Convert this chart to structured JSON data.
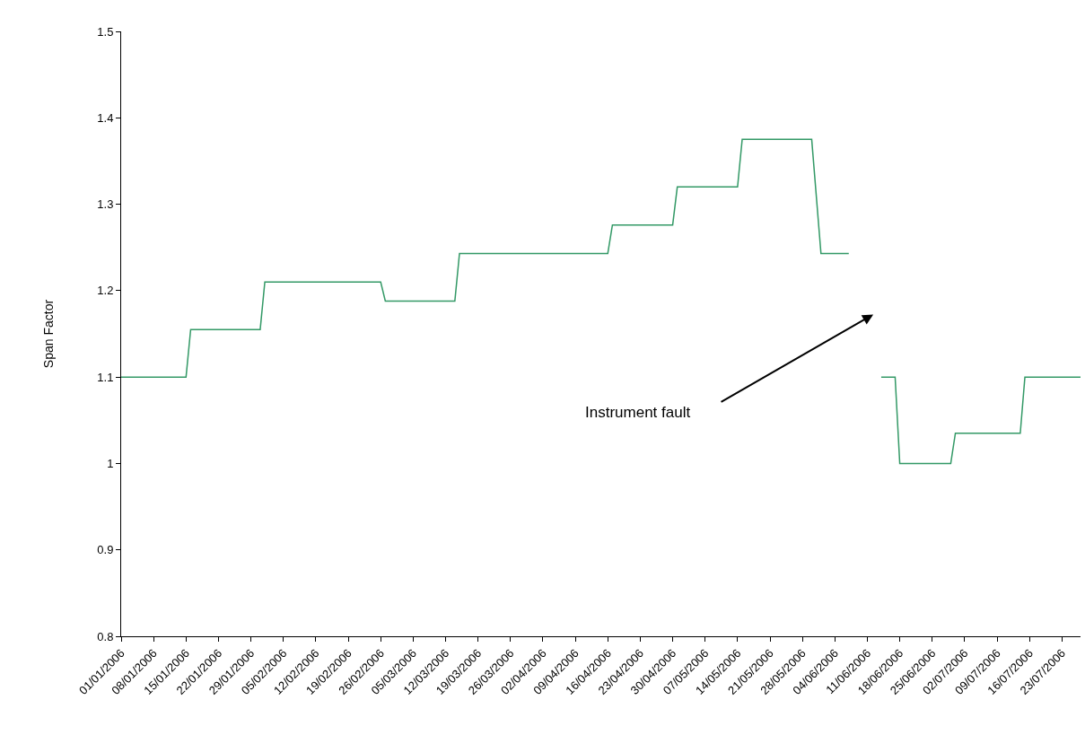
{
  "chart_data": {
    "type": "line",
    "ylabel": "Span Factor",
    "x": [
      "2006-01-01",
      "2006-01-15",
      "2006-01-16",
      "2006-01-31",
      "2006-02-01",
      "2006-02-26",
      "2006-02-27",
      "2006-03-14",
      "2006-03-15",
      "2006-04-16",
      "2006-04-17",
      "2006-04-30",
      "2006-05-01",
      "2006-05-14",
      "2006-05-15",
      "2006-05-30",
      "2006-06-01",
      "2006-06-07",
      "2006-06-10",
      "2006-06-14",
      "2006-06-17",
      "2006-06-18",
      "2006-06-29",
      "2006-06-30",
      "2006-07-14",
      "2006-07-15",
      "2006-07-27"
    ],
    "series": [
      {
        "color": "#339966",
        "values": [
          1.1,
          1.1,
          1.155,
          1.155,
          1.21,
          1.21,
          1.188,
          1.188,
          1.243,
          1.243,
          1.276,
          1.276,
          1.32,
          1.32,
          1.375,
          1.375,
          1.243,
          1.243,
          null,
          1.1,
          1.1,
          1.0,
          1.0,
          1.035,
          1.035,
          1.1,
          1.1
        ]
      }
    ],
    "ylim": [
      0.8,
      1.5
    ],
    "yticks": [
      0.8,
      0.9,
      1,
      1.1,
      1.2,
      1.3,
      1.4,
      1.5
    ],
    "xlim": [
      "2006-01-01",
      "2006-07-27"
    ],
    "xticks": [
      {
        "value": "2006-01-01",
        "label": "01/01/2006"
      },
      {
        "value": "2006-01-08",
        "label": "08/01/2006"
      },
      {
        "value": "2006-01-15",
        "label": "15/01/2006"
      },
      {
        "value": "2006-01-22",
        "label": "22/01/2006"
      },
      {
        "value": "2006-01-29",
        "label": "29/01/2006"
      },
      {
        "value": "2006-02-05",
        "label": "05/02/2006"
      },
      {
        "value": "2006-02-12",
        "label": "12/02/2006"
      },
      {
        "value": "2006-02-19",
        "label": "19/02/2006"
      },
      {
        "value": "2006-02-26",
        "label": "26/02/2006"
      },
      {
        "value": "2006-03-05",
        "label": "05/03/2006"
      },
      {
        "value": "2006-03-12",
        "label": "12/03/2006"
      },
      {
        "value": "2006-03-19",
        "label": "19/03/2006"
      },
      {
        "value": "2006-03-26",
        "label": "26/03/2006"
      },
      {
        "value": "2006-04-02",
        "label": "02/04/2006"
      },
      {
        "value": "2006-04-09",
        "label": "09/04/2006"
      },
      {
        "value": "2006-04-16",
        "label": "16/04/2006"
      },
      {
        "value": "2006-04-23",
        "label": "23/04/2006"
      },
      {
        "value": "2006-04-30",
        "label": "30/04/2006"
      },
      {
        "value": "2006-05-07",
        "label": "07/05/2006"
      },
      {
        "value": "2006-05-14",
        "label": "14/05/2006"
      },
      {
        "value": "2006-05-21",
        "label": "21/05/2006"
      },
      {
        "value": "2006-05-28",
        "label": "28/05/2006"
      },
      {
        "value": "2006-06-04",
        "label": "04/06/2006"
      },
      {
        "value": "2006-06-11",
        "label": "11/06/2006"
      },
      {
        "value": "2006-06-18",
        "label": "18/06/2006"
      },
      {
        "value": "2006-06-25",
        "label": "25/06/2006"
      },
      {
        "value": "2006-07-02",
        "label": "02/07/2006"
      },
      {
        "value": "2006-07-09",
        "label": "09/07/2006"
      },
      {
        "value": "2006-07-16",
        "label": "16/07/2006"
      },
      {
        "value": "2006-07-23",
        "label": "23/07/2006"
      }
    ],
    "annotations": [
      "Instrument fault"
    ],
    "marker": "none",
    "line_style": "solid"
  }
}
